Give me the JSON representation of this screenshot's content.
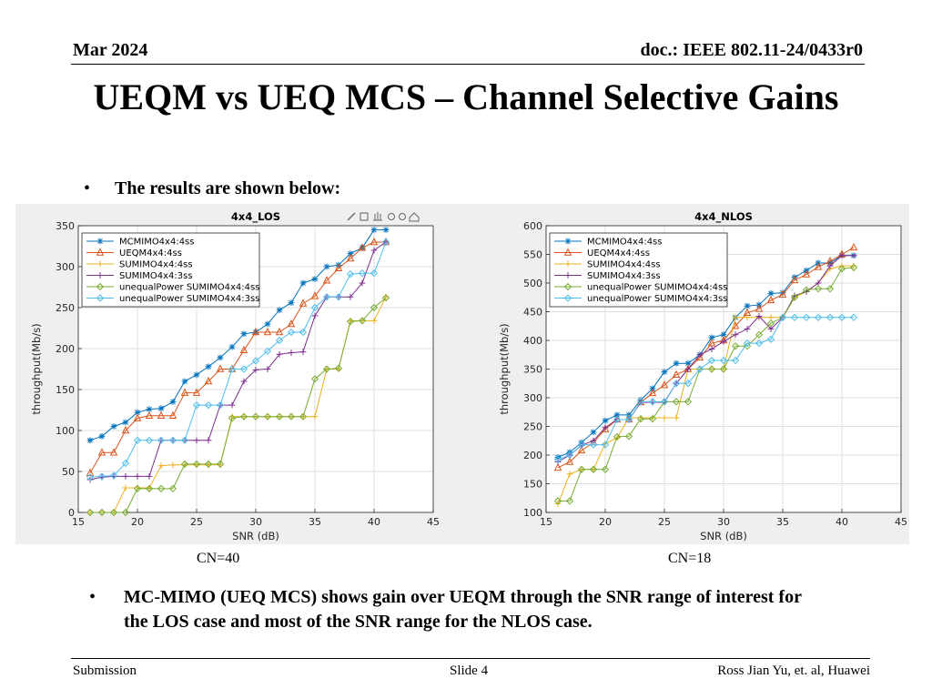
{
  "header": {
    "date": "Mar 2024",
    "doc": "doc.: IEEE 802.11-24/0433r0"
  },
  "title": "UEQM vs UEQ MCS – Channel Selective Gains",
  "bullets": {
    "intro": "The results are shown below:",
    "conclusion": "MC-MIMO (UEQ MCS) shows gain over UEQM through the SNR range of interest for the LOS case and most of the SNR range for the NLOS case."
  },
  "captions": {
    "left": "CN=40",
    "right": "CN=18"
  },
  "footer": {
    "left": "Submission",
    "center": "Slide 4",
    "right": "Ross Jian Yu, et. al, Huawei"
  },
  "icons": [
    "brush-icon",
    "datatip-icon",
    "pan-icon",
    "zoom-in-icon",
    "zoom-out-icon",
    "home-icon"
  ],
  "chart_data": [
    {
      "type": "line",
      "title": "4x4_LOS",
      "xlabel": "SNR (dB)",
      "ylabel": "throughput(Mb/s)",
      "xlim": [
        15,
        45
      ],
      "ylim": [
        0,
        350
      ],
      "xticks": [
        15,
        20,
        25,
        30,
        35,
        40,
        45
      ],
      "yticks": [
        0,
        50,
        100,
        150,
        200,
        250,
        300,
        350
      ],
      "grid": true,
      "legend": "top-left",
      "x": [
        16,
        17,
        18,
        19,
        20,
        21,
        22,
        23,
        24,
        25,
        26,
        27,
        28,
        29,
        30,
        31,
        32,
        33,
        34,
        35,
        36,
        37,
        38,
        39,
        40,
        41
      ],
      "series": [
        {
          "name": "MCMIMO4x4:4ss",
          "color": "#0072bd",
          "marker": "star",
          "values": [
            88,
            93,
            105,
            110,
            122,
            126,
            127,
            135,
            160,
            168,
            178,
            189,
            202,
            218,
            220,
            230,
            247,
            256,
            280,
            285,
            300,
            302,
            316,
            323,
            345,
            345
          ]
        },
        {
          "name": "UEQM4x4:4ss",
          "color": "#d95319",
          "marker": "triangle",
          "values": [
            48,
            73,
            73,
            100,
            115,
            118,
            118,
            118,
            146,
            146,
            160,
            175,
            175,
            198,
            220,
            220,
            220,
            230,
            255,
            264,
            283,
            298,
            310,
            323,
            330,
            330
          ]
        },
        {
          "name": "SUMIMO4x4:4ss",
          "color": "#edb120",
          "marker": "plus",
          "values": [
            0,
            0,
            0,
            30,
            30,
            30,
            57,
            58,
            58,
            58,
            58,
            58,
            117,
            117,
            117,
            117,
            117,
            117,
            117,
            117,
            175,
            175,
            234,
            234,
            234,
            263
          ]
        },
        {
          "name": "SUMIMO4x4:3ss",
          "color": "#7e2f8e",
          "marker": "plus",
          "values": [
            40,
            43,
            44,
            44,
            44,
            44,
            88,
            88,
            88,
            88,
            88,
            131,
            131,
            160,
            174,
            175,
            193,
            195,
            196,
            240,
            263,
            263,
            263,
            280,
            320,
            330
          ]
        },
        {
          "name": "unequalPower SUMIMO4x4:4ss",
          "color": "#77ac30",
          "marker": "diamond",
          "values": [
            0,
            0,
            0,
            0,
            29,
            29,
            29,
            29,
            59,
            59,
            59,
            59,
            115,
            117,
            117,
            117,
            117,
            117,
            117,
            163,
            175,
            176,
            233,
            234,
            250,
            262
          ]
        },
        {
          "name": "unequalPower SUMIMO4x4:3ss",
          "color": "#4dbeee",
          "marker": "diamond",
          "values": [
            43,
            44,
            45,
            60,
            88,
            88,
            88,
            88,
            88,
            131,
            131,
            131,
            175,
            175,
            185,
            197,
            210,
            220,
            220,
            250,
            263,
            263,
            291,
            292,
            292,
            330
          ]
        }
      ]
    },
    {
      "type": "line",
      "title": "4x4_NLOS",
      "xlabel": "SNR (dB)",
      "ylabel": "throughput(Mb/s)",
      "xlim": [
        15,
        45
      ],
      "ylim": [
        100,
        600
      ],
      "xticks": [
        15,
        20,
        25,
        30,
        35,
        40,
        45
      ],
      "yticks": [
        100,
        150,
        200,
        250,
        300,
        350,
        400,
        450,
        500,
        550,
        600
      ],
      "grid": true,
      "legend": "top-left",
      "x": [
        16,
        17,
        18,
        19,
        20,
        21,
        22,
        23,
        24,
        25,
        26,
        27,
        28,
        29,
        30,
        31,
        32,
        33,
        34,
        35,
        36,
        37,
        38,
        39,
        40,
        41
      ],
      "series": [
        {
          "name": "MCMIMO4x4:4ss",
          "color": "#0072bd",
          "marker": "star",
          "values": [
            196,
            205,
            222,
            240,
            260,
            270,
            270,
            296,
            316,
            345,
            360,
            360,
            375,
            405,
            410,
            440,
            460,
            462,
            482,
            483,
            510,
            522,
            535,
            535,
            548,
            548
          ]
        },
        {
          "name": "UEQM4x4:4ss",
          "color": "#d95319",
          "marker": "triangle",
          "values": [
            178,
            188,
            208,
            222,
            245,
            262,
            262,
            292,
            308,
            322,
            340,
            350,
            370,
            395,
            400,
            425,
            448,
            455,
            470,
            480,
            505,
            515,
            528,
            538,
            550,
            562
          ]
        },
        {
          "name": "SUMIMO4x4:4ss",
          "color": "#edb120",
          "marker": "plus",
          "values": [
            115,
            167,
            175,
            175,
            220,
            230,
            265,
            265,
            265,
            265,
            265,
            350,
            350,
            350,
            350,
            440,
            440,
            440,
            440,
            440,
            475,
            485,
            500,
            525,
            530,
            530
          ]
        },
        {
          "name": "SUMIMO4x4:3ss",
          "color": "#7e2f8e",
          "marker": "plus",
          "values": [
            188,
            200,
            217,
            225,
            248,
            262,
            262,
            292,
            292,
            292,
            325,
            350,
            375,
            385,
            398,
            410,
            420,
            442,
            420,
            440,
            478,
            485,
            500,
            530,
            548,
            548
          ]
        },
        {
          "name": "unequalPower SUMIMO4x4:4ss",
          "color": "#77ac30",
          "marker": "diamond",
          "values": [
            120,
            120,
            175,
            175,
            175,
            232,
            233,
            263,
            263,
            293,
            293,
            293,
            350,
            350,
            350,
            390,
            390,
            410,
            430,
            440,
            475,
            488,
            490,
            490,
            525,
            527
          ]
        },
        {
          "name": "unequalPower SUMIMO4x4:3ss",
          "color": "#4dbeee",
          "marker": "diamond",
          "values": [
            192,
            200,
            218,
            218,
            218,
            262,
            262,
            293,
            293,
            293,
            325,
            325,
            350,
            365,
            365,
            365,
            395,
            395,
            402,
            440,
            440,
            440,
            440,
            440,
            440,
            440
          ]
        }
      ]
    }
  ]
}
